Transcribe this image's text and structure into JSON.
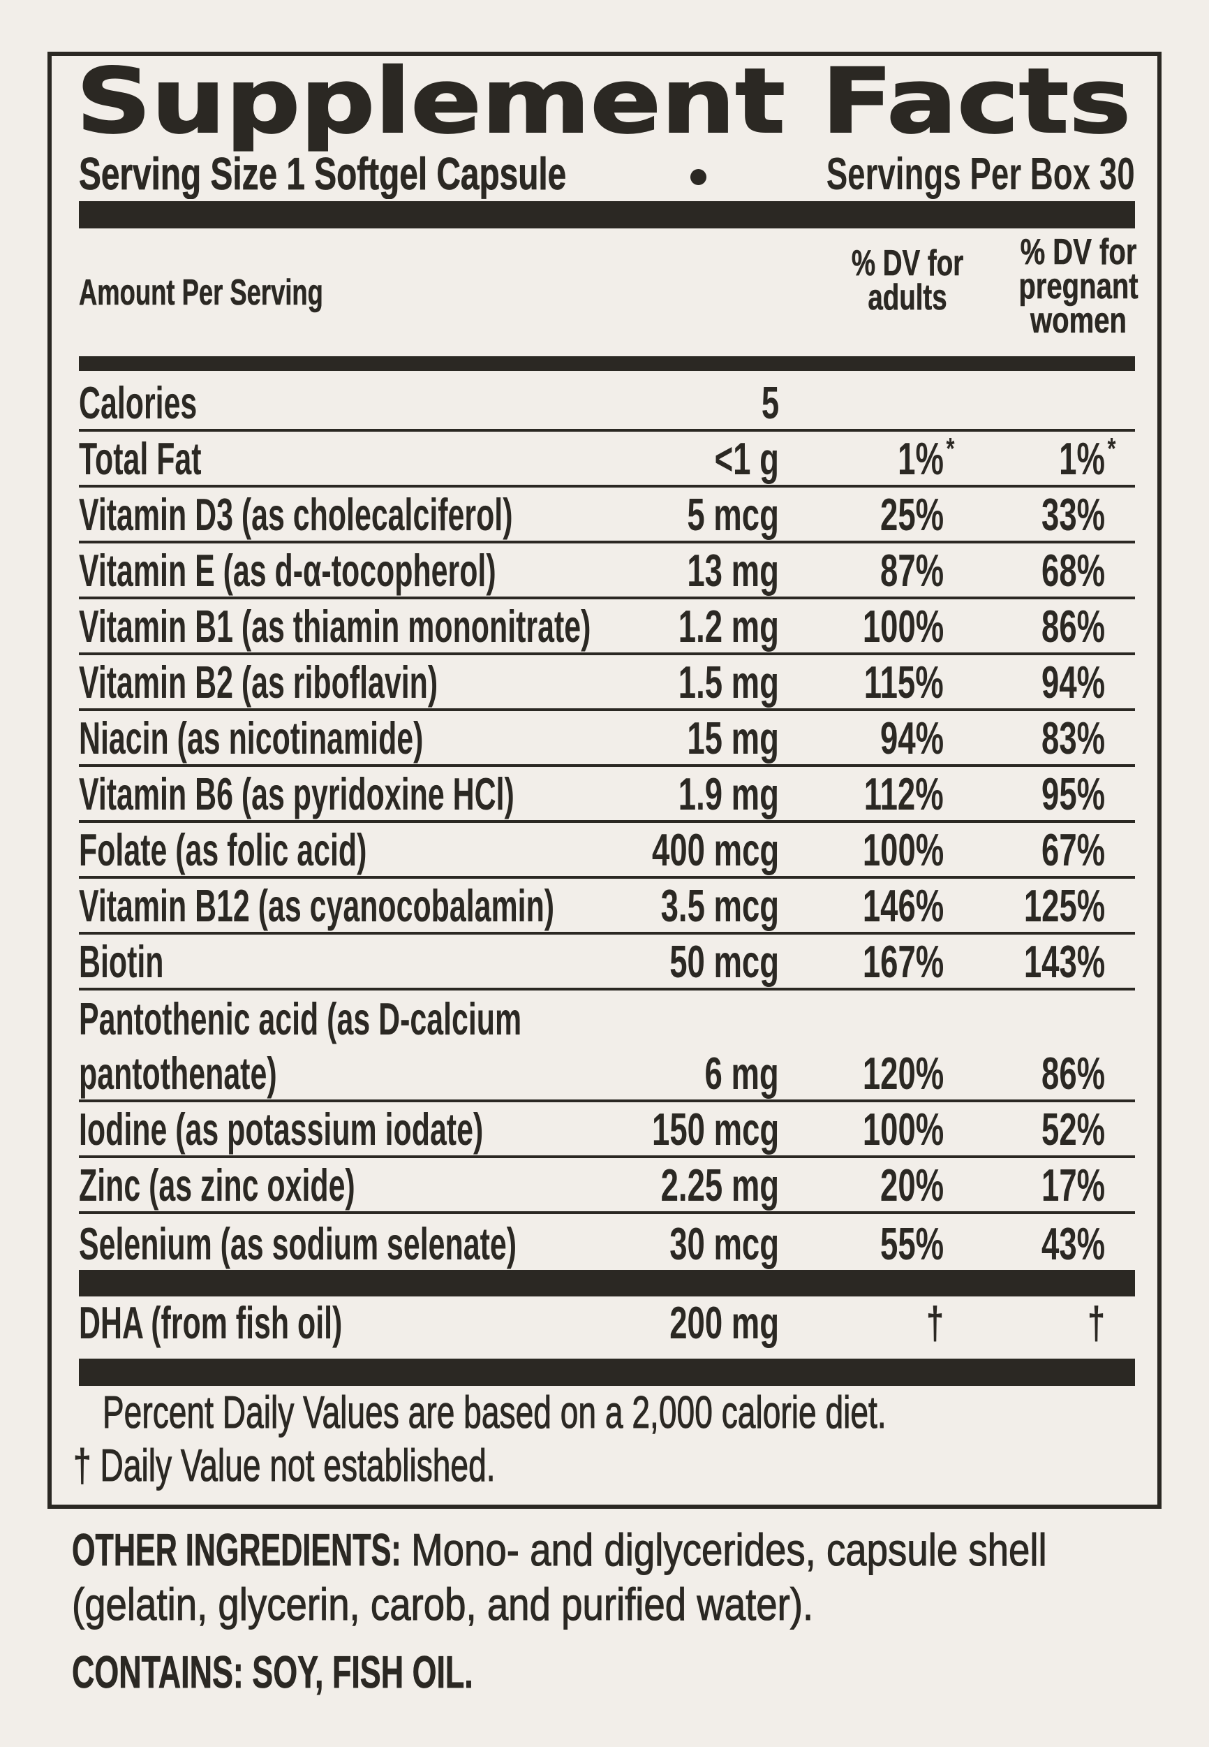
{
  "label": {
    "title": "Supplement Facts",
    "serving_size": "Serving Size 1 Softgel Capsule",
    "servings_per_box": "Servings Per Box 30",
    "bullet": "•",
    "columns": {
      "amount_header": "Amount Per Serving",
      "dv_adults_header": [
        "% DV for",
        "adults"
      ],
      "dv_pregnant_header": [
        "% DV for",
        "pregnant",
        "women"
      ]
    },
    "rows": [
      {
        "name": "Calories",
        "amount": "5",
        "dv_adults": "",
        "dv_pregnant": ""
      },
      {
        "name": "Total Fat",
        "amount": "<1 g",
        "dv_adults": "1%*",
        "dv_pregnant": "1%*"
      },
      {
        "name": "Vitamin D3 (as cholecalciferol)",
        "amount": "5 mcg",
        "dv_adults": "25%",
        "dv_pregnant": "33%"
      },
      {
        "name": "Vitamin E (as d-α-tocopherol)",
        "amount": "13 mg",
        "dv_adults": "87%",
        "dv_pregnant": "68%"
      },
      {
        "name": "Vitamin B1 (as thiamin mononitrate)",
        "amount": "1.2 mg",
        "dv_adults": "100%",
        "dv_pregnant": "86%"
      },
      {
        "name": "Vitamin B2 (as riboflavin)",
        "amount": "1.5 mg",
        "dv_adults": "115%",
        "dv_pregnant": "94%"
      },
      {
        "name": "Niacin (as nicotinamide)",
        "amount": "15 mg",
        "dv_adults": "94%",
        "dv_pregnant": "83%"
      },
      {
        "name": "Vitamin B6 (as pyridoxine HCl)",
        "amount": "1.9 mg",
        "dv_adults": "112%",
        "dv_pregnant": "95%"
      },
      {
        "name": "Folate (as folic acid)",
        "amount": "400 mcg",
        "dv_adults": "100%",
        "dv_pregnant": "67%"
      },
      {
        "name": "Vitamin B12 (as cyanocobalamin)",
        "amount": "3.5 mcg",
        "dv_adults": "146%",
        "dv_pregnant": "125%"
      },
      {
        "name": "Biotin",
        "amount": "50 mcg",
        "dv_adults": "167%",
        "dv_pregnant": "143%"
      },
      {
        "name": "Pantothenic acid (as D-calcium pantothenate)",
        "amount": "6 mg",
        "dv_adults": "120%",
        "dv_pregnant": "86%"
      },
      {
        "name": "Iodine (as potassium iodate)",
        "amount": "150 mcg",
        "dv_adults": "100%",
        "dv_pregnant": "52%"
      },
      {
        "name": "Zinc (as zinc oxide)",
        "amount": "2.25 mg",
        "dv_adults": "20%",
        "dv_pregnant": "17%"
      },
      {
        "name": "Selenium (as sodium selenate)",
        "amount": "30 mcg",
        "dv_adults": "55%",
        "dv_pregnant": "43%"
      }
    ],
    "dha_row": {
      "name": "DHA (from fish oil)",
      "amount": "200 mg",
      "dv_adults": "†",
      "dv_pregnant": "†"
    },
    "footnotes": [
      "Percent Daily Values are based on a 2,000 calorie diet.",
      "† Daily Value not established."
    ]
  },
  "other_ingredients": {
    "label": "OTHER INGREDIENTS:",
    "line1_rest": " Mono- and diglycerides, capsule shell",
    "line2": "(gelatin, glycerin, carob, and purified water)."
  },
  "contains": "CONTAINS: SOY, FISH OIL.",
  "colors": {
    "background": "#F2EEE9",
    "ink": "#2B2823"
  }
}
